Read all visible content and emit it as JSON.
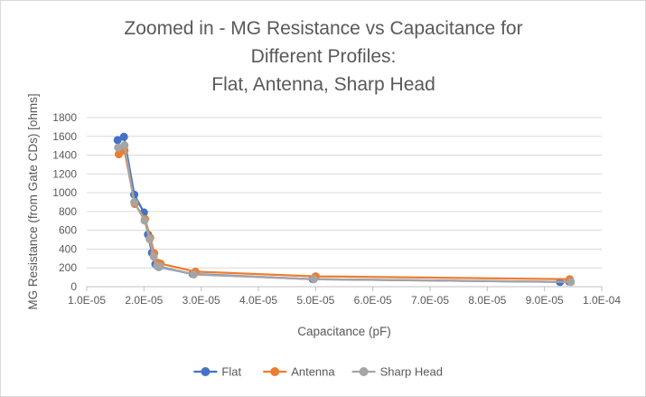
{
  "chart_data": {
    "type": "scatter",
    "title_lines": [
      "Zoomed in - MG Resistance vs Capacitance for",
      "Different Profiles:",
      "Flat, Antenna, Sharp Head"
    ],
    "xlabel": "Capacitance (pF)",
    "ylabel": "MG Resistance (from Gate CDs) [ohms]",
    "xlim": [
      1e-05,
      0.0001
    ],
    "ylim": [
      0,
      1800
    ],
    "x_ticks": [
      1e-05,
      2e-05,
      3e-05,
      4e-05,
      5e-05,
      6e-05,
      7e-05,
      8e-05,
      9e-05,
      0.0001
    ],
    "x_tick_labels": [
      "1.0E-05",
      "2.0E-05",
      "3.0E-05",
      "4.0E-05",
      "5.0E-05",
      "6.0E-05",
      "7.0E-05",
      "8.0E-05",
      "9.0E-05",
      "1.0E-04"
    ],
    "y_ticks": [
      0,
      200,
      400,
      600,
      800,
      1000,
      1200,
      1400,
      1600,
      1800
    ],
    "y_tick_labels": [
      "0",
      "200",
      "400",
      "600",
      "800",
      "1000",
      "1200",
      "1400",
      "1600",
      "1800"
    ],
    "grid": true,
    "legend_position": "bottom",
    "series": [
      {
        "name": "Flat",
        "color": "#4472c4",
        "x": [
          1.54e-05,
          1.65e-05,
          1.83e-05,
          2e-05,
          2.07e-05,
          2.14e-05,
          2.2e-05,
          2.26e-05,
          2.85e-05,
          4.95e-05,
          9.27e-05,
          9.43e-05
        ],
        "y": [
          1560,
          1595,
          980,
          790,
          555,
          360,
          240,
          210,
          135,
          80,
          50,
          55
        ]
      },
      {
        "name": "Antenna",
        "color": "#ed7d31",
        "x": [
          1.56e-05,
          1.66e-05,
          1.84e-05,
          2.02e-05,
          2.11e-05,
          2.18e-05,
          2.24e-05,
          2.29e-05,
          2.9e-05,
          5e-05,
          9.44e-05
        ],
        "y": [
          1410,
          1450,
          880,
          720,
          520,
          355,
          255,
          245,
          160,
          110,
          80
        ]
      },
      {
        "name": "Sharp Head",
        "color": "#a5a5a5",
        "x": [
          1.55e-05,
          1.66e-05,
          1.83e-05,
          2.01e-05,
          2.1e-05,
          2.17e-05,
          2.23e-05,
          2.28e-05,
          2.87e-05,
          4.97e-05,
          9.46e-05
        ],
        "y": [
          1480,
          1505,
          900,
          705,
          505,
          320,
          220,
          215,
          130,
          80,
          50
        ]
      }
    ]
  }
}
